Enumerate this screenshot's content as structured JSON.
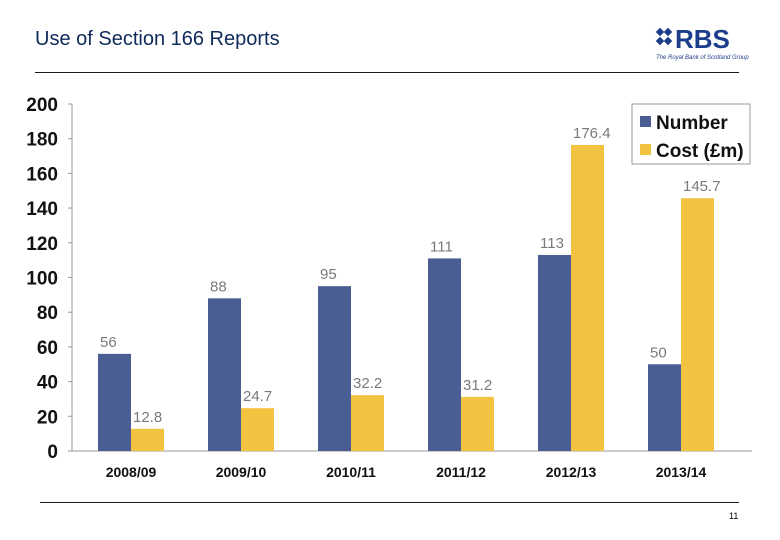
{
  "slide": {
    "title": "Use of Section 166 Reports",
    "page_number": "11"
  },
  "logo": {
    "text": "RBS",
    "tagline": "The Royal Bank of Scotland Group"
  },
  "colors": {
    "number": "#4a5e94",
    "cost": "#f2c340"
  },
  "chart_data": {
    "type": "bar",
    "categories": [
      "2008/09",
      "2009/10",
      "2010/11",
      "2011/12",
      "2012/13",
      "2013/14"
    ],
    "series": [
      {
        "name": "Number",
        "values": [
          56,
          88,
          95,
          111,
          113,
          50
        ],
        "labels": [
          "56",
          "88",
          "95",
          "111",
          "113",
          "50"
        ]
      },
      {
        "name": "Cost (£m)",
        "values": [
          12.8,
          24.7,
          32.2,
          31.2,
          176.4,
          145.7
        ],
        "labels": [
          "12.8",
          "24.7",
          "32.2",
          "31.2",
          "176.4",
          "145.7"
        ]
      }
    ],
    "ylim": [
      0,
      200
    ],
    "yticks": [
      "0",
      "20",
      "40",
      "60",
      "80",
      "100",
      "120",
      "140",
      "160",
      "180",
      "200"
    ],
    "legend": "top-right",
    "grid": false
  }
}
